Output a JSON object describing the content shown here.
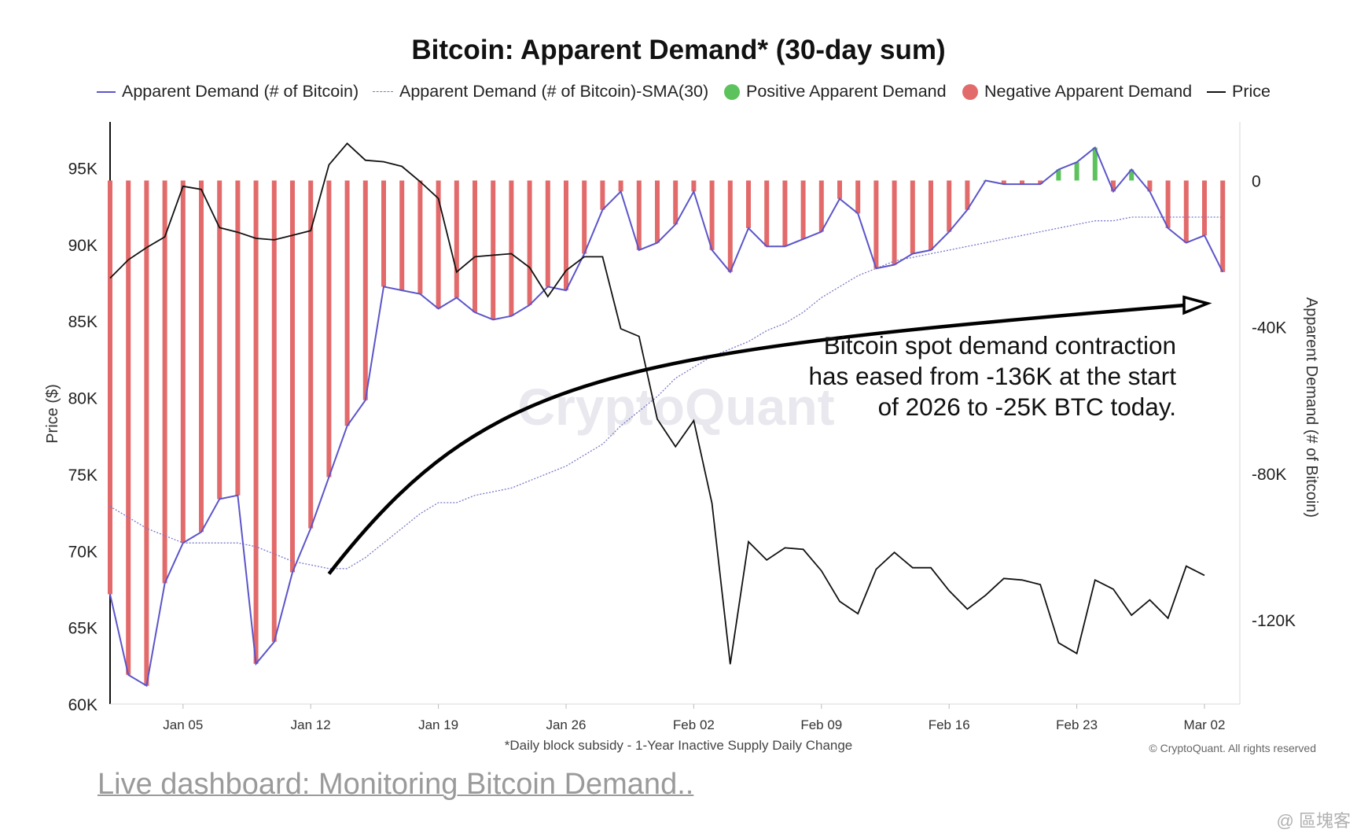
{
  "chart_data": {
    "type": "bar+line",
    "title": "Bitcoin: Apparent Demand* (30-day sum)",
    "legend": [
      {
        "label": "Apparent Demand (# of Bitcoin)",
        "color": "#5b55c9",
        "style": "line"
      },
      {
        "label": "Apparent Demand (# of Bitcoin)-SMA(30)",
        "color": "#7a78c8",
        "style": "dashed"
      },
      {
        "label": "Positive Apparent Demand",
        "color": "#5cc25c",
        "style": "dot"
      },
      {
        "label": "Negative Apparent Demand",
        "color": "#e36a6a",
        "style": "dot"
      },
      {
        "label": "Price",
        "color": "#111111",
        "style": "line"
      }
    ],
    "legend_position": "top",
    "x_ticks": [
      "Jan 05",
      "Jan 12",
      "Jan 19",
      "Jan 26",
      "Feb 02",
      "Feb 09",
      "Feb 16",
      "Feb 23",
      "Mar 02"
    ],
    "left_axis": {
      "label": "Price ($)",
      "ylim": [
        60000,
        98000
      ],
      "ticks": [
        {
          "v": 60000,
          "label": "60K"
        },
        {
          "v": 65000,
          "label": "65K"
        },
        {
          "v": 70000,
          "label": "70K"
        },
        {
          "v": 75000,
          "label": "75K"
        },
        {
          "v": 80000,
          "label": "80K"
        },
        {
          "v": 85000,
          "label": "85K"
        },
        {
          "v": 90000,
          "label": "90K"
        },
        {
          "v": 95000,
          "label": "95K"
        }
      ]
    },
    "right_axis": {
      "label": "Apparent Demand (# of Bitcoin)",
      "ylim": [
        -143000,
        16000
      ],
      "ticks": [
        {
          "v": 0,
          "label": "0"
        },
        {
          "v": -40000,
          "label": "-40K"
        },
        {
          "v": -80000,
          "label": "-80K"
        },
        {
          "v": -120000,
          "label": "-120K"
        }
      ]
    },
    "x_dates": [
      "2026-01-01",
      "2026-01-02",
      "2026-01-03",
      "2026-01-04",
      "2026-01-05",
      "2026-01-06",
      "2026-01-07",
      "2026-01-08",
      "2026-01-09",
      "2026-01-10",
      "2026-01-11",
      "2026-01-12",
      "2026-01-13",
      "2026-01-14",
      "2026-01-15",
      "2026-01-16",
      "2026-01-17",
      "2026-01-18",
      "2026-01-19",
      "2026-01-20",
      "2026-01-21",
      "2026-01-22",
      "2026-01-23",
      "2026-01-24",
      "2026-01-25",
      "2026-01-26",
      "2026-01-27",
      "2026-01-28",
      "2026-01-29",
      "2026-01-30",
      "2026-01-31",
      "2026-02-01",
      "2026-02-02",
      "2026-02-03",
      "2026-02-04",
      "2026-02-05",
      "2026-02-06",
      "2026-02-07",
      "2026-02-08",
      "2026-02-09",
      "2026-02-10",
      "2026-02-11",
      "2026-02-12",
      "2026-02-13",
      "2026-02-14",
      "2026-02-15",
      "2026-02-16",
      "2026-02-17",
      "2026-02-18",
      "2026-02-19",
      "2026-02-20",
      "2026-02-21",
      "2026-02-22",
      "2026-02-23",
      "2026-02-24",
      "2026-02-25",
      "2026-02-26",
      "2026-02-27",
      "2026-02-28",
      "2026-03-01",
      "2026-03-02",
      "2026-03-03"
    ],
    "series": [
      {
        "name": "Apparent Demand (# of Bitcoin)",
        "axis": "right",
        "values": [
          -113000,
          -135000,
          -138000,
          -110000,
          -99000,
          -96000,
          -87000,
          -86000,
          -132000,
          -126000,
          -107000,
          -95000,
          -81000,
          -67000,
          -60000,
          -29000,
          -30000,
          -31000,
          -35000,
          -32000,
          -36000,
          -38000,
          -37000,
          -34000,
          -29000,
          -30000,
          -20000,
          -8000,
          -3000,
          -19000,
          -17000,
          -12000,
          -3000,
          -19000,
          -25000,
          -13000,
          -18000,
          -18000,
          -16000,
          -14000,
          -5000,
          -9000,
          -24000,
          -23000,
          -20000,
          -19000,
          -14000,
          -8000,
          0,
          -1000,
          -1000,
          -1000,
          3000,
          5000,
          9000,
          -3000,
          3000,
          -3000,
          -13000,
          -17000,
          -15000,
          -25000
        ]
      },
      {
        "name": "Apparent Demand (# of Bitcoin)-SMA(30)",
        "axis": "right",
        "values": [
          -89000,
          -92000,
          -95000,
          -97000,
          -99000,
          -99000,
          -99000,
          -99000,
          -100000,
          -102000,
          -104000,
          -105000,
          -106000,
          -106000,
          -103000,
          -99000,
          -95000,
          -91000,
          -88000,
          -88000,
          -86000,
          -85000,
          -84000,
          -82000,
          -80000,
          -78000,
          -75000,
          -72000,
          -67000,
          -63000,
          -59000,
          -54000,
          -51000,
          -48000,
          -46000,
          -44000,
          -41000,
          -39000,
          -36000,
          -32000,
          -29000,
          -26000,
          -24000,
          -22000,
          -21000,
          -20000,
          -19000,
          -18000,
          -17000,
          -16000,
          -15000,
          -14000,
          -13000,
          -12000,
          -11000,
          -11000,
          -10000,
          -10000,
          -10000,
          -10000,
          -10000,
          -10000
        ]
      },
      {
        "name": "Price",
        "axis": "left",
        "values": [
          87800,
          89000,
          89800,
          90500,
          93800,
          93600,
          91100,
          90800,
          90400,
          90300,
          90600,
          90900,
          95200,
          96600,
          95500,
          95400,
          95100,
          94100,
          93000,
          88200,
          89200,
          89300,
          89400,
          88500,
          86600,
          88300,
          89200,
          89200,
          84500,
          84000,
          78600,
          76800,
          78500,
          73100,
          62600,
          70600,
          69400,
          70200,
          70100,
          68700,
          66700,
          65900,
          68800,
          69900,
          68900,
          68900,
          67400,
          66200,
          67100,
          68200,
          68100,
          67800,
          64000,
          63300,
          68100,
          67500,
          65800,
          66800,
          65600,
          69000,
          68400,
          null
        ]
      }
    ],
    "annotation": {
      "lines": [
        "Bitcoin spot  demand contraction",
        "has eased from -136K at the start",
        "of 2026 to -25K BTC today."
      ],
      "arrow": {
        "from": {
          "date": "2026-01-13",
          "price": 68500
        },
        "to": {
          "date": "2026-03-02",
          "price": 86100
        }
      }
    },
    "watermark": "CryptoQuant",
    "footnote": "*Daily block subsidy - 1-Year Inactive Supply Daily Change",
    "copyright": "© CryptoQuant. All rights reserved"
  },
  "footer": {
    "link_text": "Live dashboard: Monitoring Bitcoin Demand..",
    "source_credit": "@ 區塊客"
  }
}
